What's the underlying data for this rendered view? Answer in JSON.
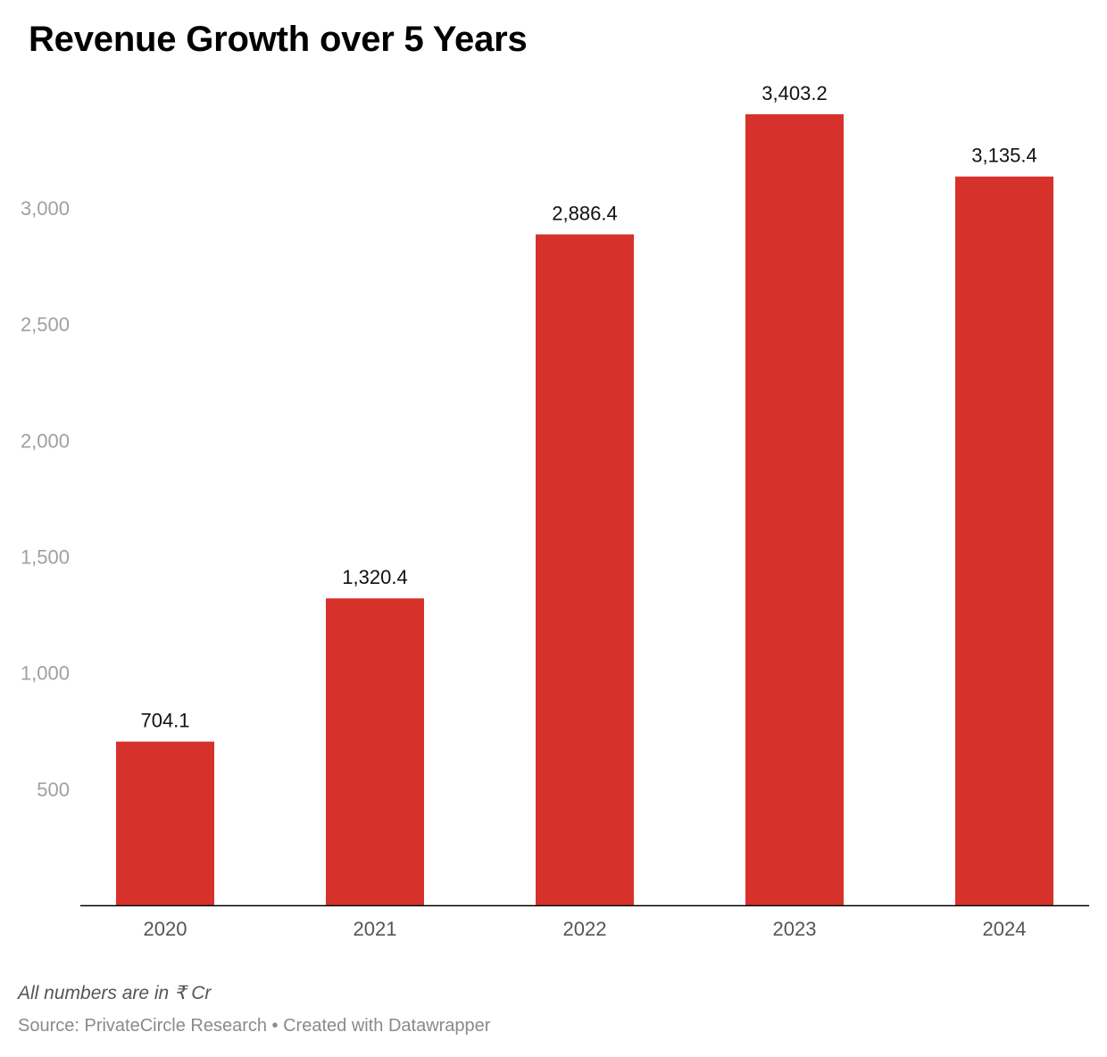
{
  "colors": {
    "bar": "#d7312c",
    "axis": "#000000",
    "tick_text": "#a0a0a0",
    "category_text": "#555555"
  },
  "chart_data": {
    "type": "bar",
    "title": "Revenue Growth over 5 Years",
    "categories": [
      "2020",
      "2021",
      "2022",
      "2023",
      "2024"
    ],
    "values": [
      704.1,
      1320.4,
      2886.4,
      3403.2,
      3135.4
    ],
    "value_labels": [
      "704.1",
      "1,320.4",
      "2,886.4",
      "3,403.2",
      "3,135.4"
    ],
    "yticks": [
      500,
      1000,
      1500,
      2000,
      2500,
      3000
    ],
    "ytick_labels": [
      "500",
      "1,000",
      "1,500",
      "2,000",
      "2,500",
      "3,000"
    ],
    "ylim": [
      0,
      3403.2
    ],
    "grid": false,
    "xlabel": "",
    "ylabel": ""
  },
  "note": "All numbers are in ₹ Cr",
  "footer": "Source: PrivateCircle Research • Created with Datawrapper"
}
